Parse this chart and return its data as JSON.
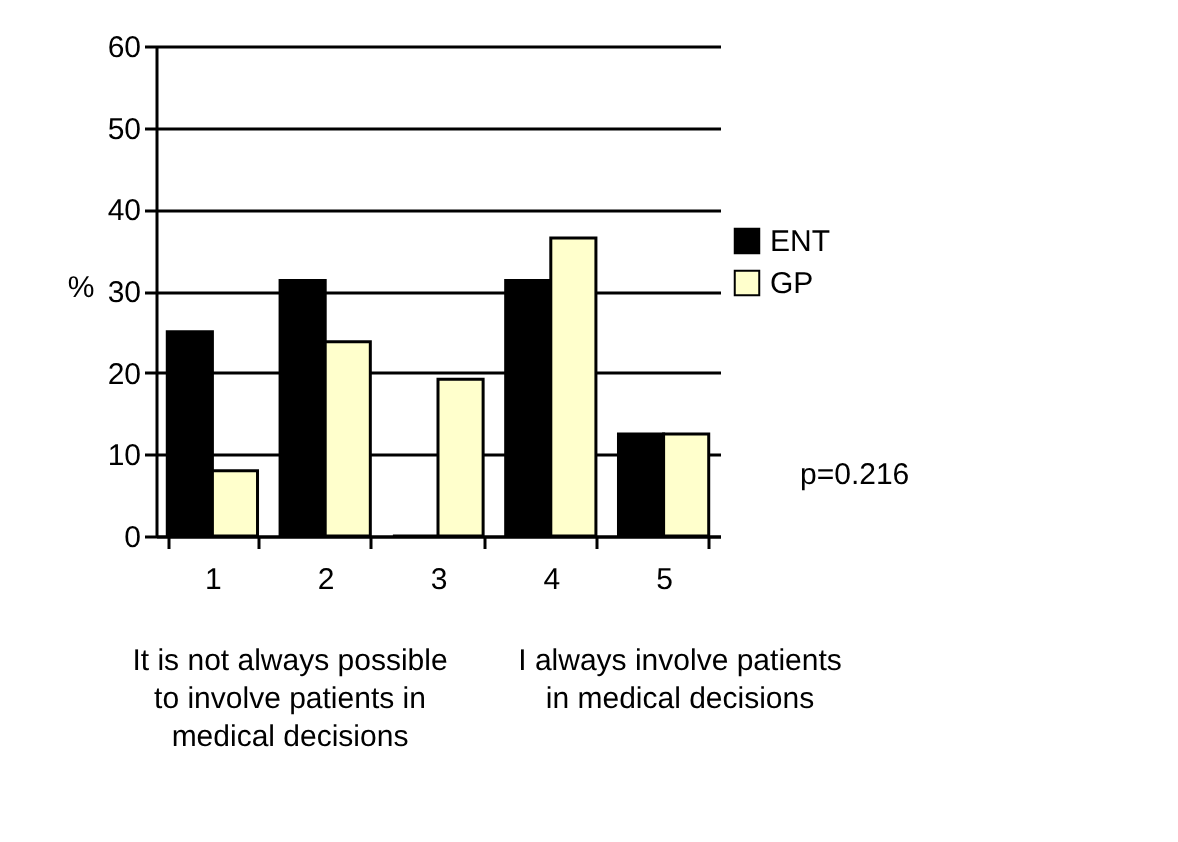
{
  "chart_data": {
    "type": "bar",
    "ylabel": "%",
    "categories": [
      "1",
      "2",
      "3",
      "4",
      "5"
    ],
    "series": [
      {
        "name": "ENT",
        "color": "#000000",
        "values": [
          25,
          31.3,
          0,
          31.3,
          12.5
        ]
      },
      {
        "name": "GP",
        "color": "#ffffcc",
        "values": [
          8,
          23.8,
          19.2,
          36.5,
          12.5
        ]
      }
    ],
    "ylim": [
      0,
      60
    ],
    "yticks": [
      0,
      10,
      20,
      30,
      40,
      50,
      60
    ],
    "grid": "y",
    "legend": "right",
    "annotations": [
      "p=0.216",
      "It is not always possible\nto involve patients in\nmedical decisions",
      "I always involve patients\nin medical decisions"
    ]
  }
}
